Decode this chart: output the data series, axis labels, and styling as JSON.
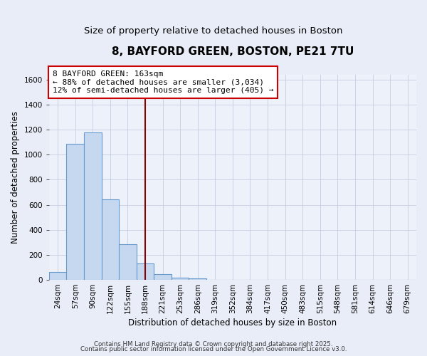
{
  "title": "8, BAYFORD GREEN, BOSTON, PE21 7TU",
  "subtitle": "Size of property relative to detached houses in Boston",
  "xlabel": "Distribution of detached houses by size in Boston",
  "ylabel": "Number of detached properties",
  "bar_labels": [
    "24sqm",
    "57sqm",
    "90sqm",
    "122sqm",
    "155sqm",
    "188sqm",
    "221sqm",
    "253sqm",
    "286sqm",
    "319sqm",
    "352sqm",
    "384sqm",
    "417sqm",
    "450sqm",
    "483sqm",
    "515sqm",
    "548sqm",
    "581sqm",
    "614sqm",
    "646sqm",
    "679sqm"
  ],
  "bar_values": [
    65,
    1085,
    1180,
    645,
    285,
    130,
    45,
    20,
    10,
    0,
    0,
    0,
    0,
    0,
    0,
    0,
    0,
    0,
    0,
    0,
    0
  ],
  "bar_color": "#c5d8f0",
  "bar_edge_color": "#6699cc",
  "ylim": [
    0,
    1640
  ],
  "yticks": [
    0,
    200,
    400,
    600,
    800,
    1000,
    1200,
    1400,
    1600
  ],
  "vline_x": 5.0,
  "vline_color": "#8b0000",
  "annotation_title": "8 BAYFORD GREEN: 163sqm",
  "annotation_line1": "← 88% of detached houses are smaller (3,034)",
  "annotation_line2": "12% of semi-detached houses are larger (405) →",
  "annotation_box_facecolor": "#ffffff",
  "annotation_box_edge": "#cc0000",
  "footnote1": "Contains HM Land Registry data © Crown copyright and database right 2025.",
  "footnote2": "Contains public sector information licensed under the Open Government Licence v3.0.",
  "bg_color": "#e8edf8",
  "plot_bg_color": "#edf1f9",
  "grid_color": "#c5cce0",
  "title_fontsize": 11,
  "subtitle_fontsize": 9.5,
  "axis_label_fontsize": 8.5,
  "tick_fontsize": 7.5,
  "annotation_fontsize": 8
}
